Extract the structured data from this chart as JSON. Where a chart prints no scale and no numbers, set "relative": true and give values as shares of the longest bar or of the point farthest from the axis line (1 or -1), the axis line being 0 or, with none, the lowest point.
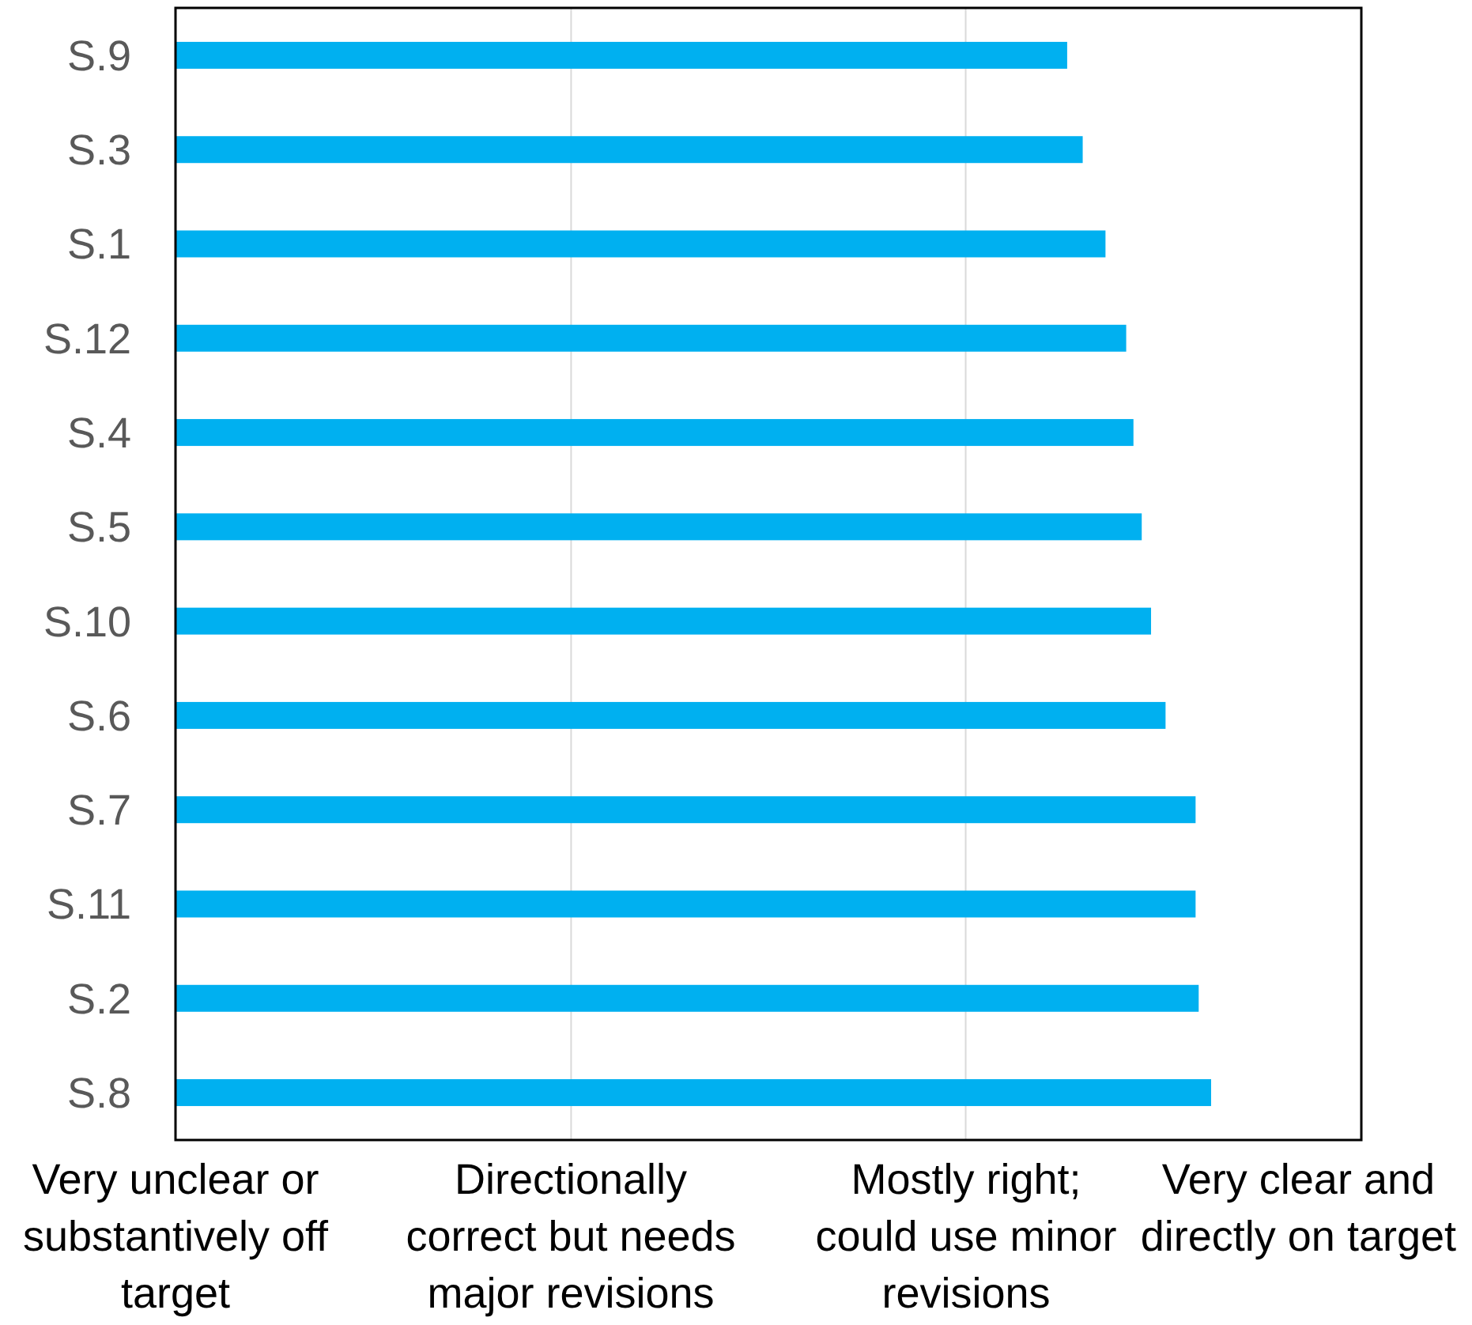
{
  "chart_data": {
    "type": "bar",
    "orientation": "horizontal",
    "relative": true,
    "categories": [
      "S.9",
      "S.3",
      "S.1",
      "S.12",
      "S.4",
      "S.5",
      "S.10",
      "S.6",
      "S.7",
      "S.11",
      "S.2",
      "S.8"
    ],
    "values": [
      0.861,
      0.876,
      0.898,
      0.918,
      0.925,
      0.933,
      0.942,
      0.956,
      0.985,
      0.985,
      0.988,
      1
    ],
    "color": "#00b0f0",
    "annotations": [
      "Very unclear or substantively off target",
      "Directionally correct but needs major revisions",
      "Mostly right; could use minor revisions",
      "Very clear and directly on target"
    ],
    "ref_lines": [
      {
        "axis": "x",
        "value": 0.382,
        "color": "#d9d9d9"
      },
      {
        "axis": "x",
        "value": 0.763,
        "color": "#d9d9d9"
      }
    ]
  }
}
